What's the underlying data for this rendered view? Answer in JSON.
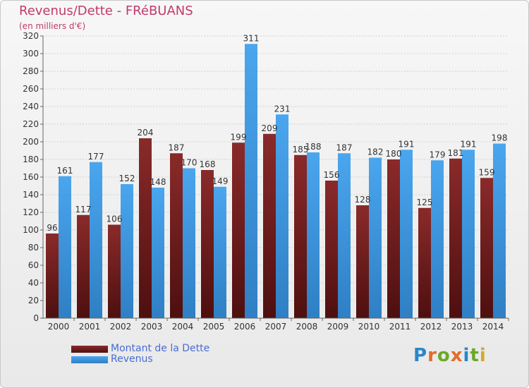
{
  "header": {
    "title": "Revenus/Dette - FRéBUANS",
    "subtitle": "(en milliers d'€)"
  },
  "legend": [
    {
      "label": "Montant de la Dette",
      "color": "#6e1b1b"
    },
    {
      "label": "Revenus",
      "color": "#3a8fd8"
    }
  ],
  "logo": {
    "letters": [
      {
        "ch": "P",
        "color": "#2a86c8"
      },
      {
        "ch": "r",
        "color": "#e46a2a"
      },
      {
        "ch": "o",
        "color": "#6aaa2a"
      },
      {
        "ch": "x",
        "color": "#e46a2a"
      },
      {
        "ch": "i",
        "color": "#2a86c8"
      },
      {
        "ch": "t",
        "color": "#6aaa2a"
      },
      {
        "ch": "i",
        "color": "#d4a82a"
      }
    ]
  },
  "chart_data": {
    "type": "bar",
    "categories": [
      "2000",
      "2001",
      "2002",
      "2003",
      "2004",
      "2005",
      "2006",
      "2007",
      "2008",
      "2009",
      "2010",
      "2011",
      "2012",
      "2013",
      "2014"
    ],
    "series": [
      {
        "name": "Montant de la Dette",
        "color": "#6e1b1b",
        "values": [
          96,
          117,
          106,
          204,
          187,
          168,
          199,
          209,
          185,
          156,
          128,
          180,
          125,
          181,
          159
        ]
      },
      {
        "name": "Revenus",
        "color": "#3a8fd8",
        "values": [
          161,
          177,
          152,
          148,
          170,
          149,
          311,
          231,
          188,
          187,
          182,
          191,
          179,
          191,
          198
        ]
      }
    ],
    "ylim": [
      0,
      320
    ],
    "yticks": [
      0,
      20,
      40,
      60,
      80,
      100,
      120,
      140,
      160,
      180,
      200,
      220,
      240,
      260,
      280,
      300,
      320
    ],
    "grid": true
  }
}
